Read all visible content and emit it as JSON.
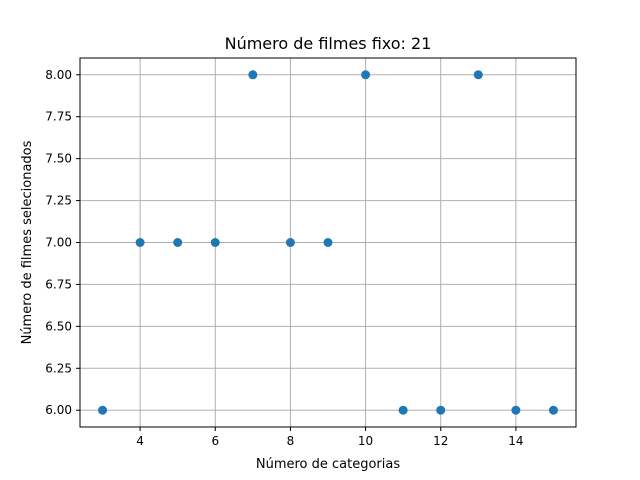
{
  "chart_data": {
    "type": "scatter",
    "title": "Número de filmes fixo: 21",
    "xlabel": "Número de categorias",
    "ylabel": "Número de filmes selecionados",
    "x": [
      3,
      4,
      5,
      6,
      7,
      8,
      9,
      10,
      11,
      12,
      13,
      14,
      15
    ],
    "y": [
      6,
      7,
      7,
      7,
      8,
      7,
      7,
      8,
      6,
      6,
      8,
      6,
      6
    ],
    "xlim": [
      2.4,
      15.6
    ],
    "ylim": [
      5.9,
      8.1
    ],
    "xticks": [
      4,
      6,
      8,
      10,
      12,
      14
    ],
    "xtick_labels": [
      "4",
      "6",
      "8",
      "10",
      "12",
      "14"
    ],
    "yticks": [
      6.0,
      6.25,
      6.5,
      6.75,
      7.0,
      7.25,
      7.5,
      7.75,
      8.0
    ],
    "ytick_labels": [
      "6.00",
      "6.25",
      "6.50",
      "6.75",
      "7.00",
      "7.25",
      "7.50",
      "7.75",
      "8.00"
    ],
    "grid": true,
    "legend": "none",
    "colors": {
      "marker": "#1f77b4",
      "grid": "#b0b0b0",
      "axes": "#000000"
    }
  }
}
